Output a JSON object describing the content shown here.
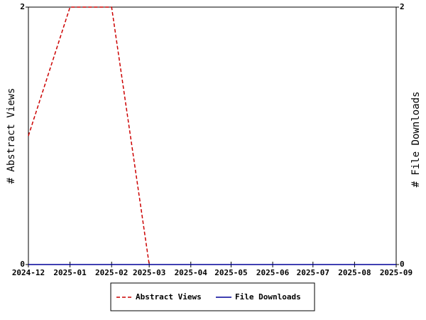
{
  "chart_data": {
    "type": "line",
    "x": [
      "2024-12",
      "2025-01",
      "2025-02",
      "2025-03",
      "2025-04",
      "2025-05",
      "2025-06",
      "2025-07",
      "2025-08",
      "2025-09"
    ],
    "y_label": "# Abstract Views",
    "y2_label": "# File Downloads",
    "ylim": [
      0,
      2
    ],
    "yticks": [
      0,
      2
    ],
    "y2lim": [
      0,
      2
    ],
    "y2ticks": [
      0,
      2
    ],
    "series": [
      {
        "name": "Abstract Views",
        "color": "#cc0000",
        "dashed": true,
        "values": [
          1,
          2,
          2,
          0,
          null,
          null,
          null,
          null,
          null,
          null
        ]
      },
      {
        "name": "File Downloads",
        "color": "#000099",
        "axis": "y2",
        "values": [
          0,
          0,
          0,
          0,
          0,
          0,
          0,
          0,
          0,
          0
        ]
      }
    ]
  }
}
